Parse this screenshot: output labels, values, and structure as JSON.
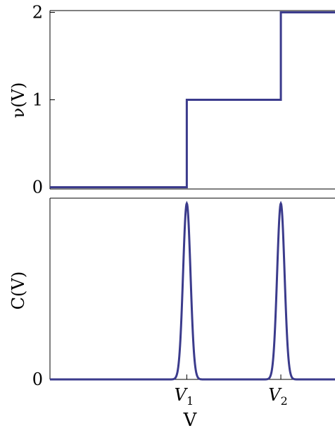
{
  "chart_data": [
    {
      "type": "line",
      "ylabel": "ν(V)",
      "xlabel": "",
      "y_ticks": [
        "0",
        "1",
        "2"
      ],
      "ylim": [
        -0.02,
        2.02
      ],
      "xlim": [
        0,
        10
      ],
      "series": [
        {
          "color": "#3b3b8c",
          "x": [
            0,
            4.8,
            4.8,
            8.1,
            8.1,
            10
          ],
          "y": [
            0,
            0,
            1,
            1,
            2,
            2
          ]
        }
      ]
    },
    {
      "type": "line",
      "ylabel": "C(V)",
      "xlabel": "V",
      "y_ticks": [
        "0"
      ],
      "x_ticks": [
        {
          "base": "V",
          "sub": "1",
          "x": 4.8
        },
        {
          "base": "V",
          "sub": "2",
          "x": 8.1
        }
      ],
      "ylim": [
        0,
        1.03
      ],
      "xlim": [
        0,
        10
      ],
      "series": [
        {
          "color": "#3b3b8c",
          "peaks": [
            {
              "center": 4.8,
              "height": 1.0,
              "width": 0.13
            },
            {
              "center": 8.1,
              "height": 1.0,
              "width": 0.13
            }
          ]
        }
      ]
    }
  ]
}
